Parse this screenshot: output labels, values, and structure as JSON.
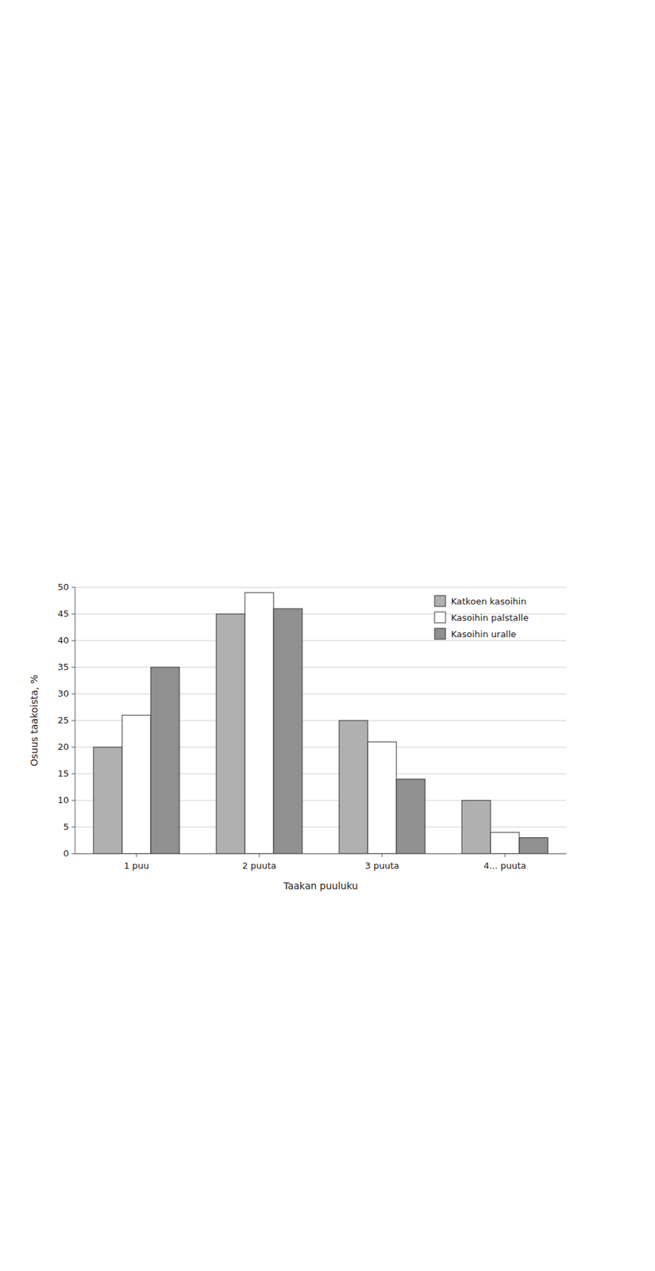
{
  "chart_data": {
    "type": "bar",
    "categories": [
      "1 puu",
      "2 puuta",
      "3 puuta",
      "4... puuta"
    ],
    "xlabel": "Taakan puuluku",
    "ylabel": "Osuus taakoista, %",
    "series": [
      {
        "name": "Katkoen kasoihin",
        "color": "#b0b0b0",
        "values": [
          20,
          45,
          25,
          10
        ]
      },
      {
        "name": "Kasoihin palstalle",
        "color": "#ffffff",
        "values": [
          26,
          49,
          21,
          4
        ]
      },
      {
        "name": "Kasoihin uralle",
        "color": "#909090",
        "values": [
          35,
          46,
          14,
          3
        ]
      }
    ],
    "ylim": [
      0,
      50
    ],
    "yticks": [
      0,
      5,
      10,
      15,
      20,
      25,
      30,
      35,
      40,
      45,
      50
    ],
    "grid": true,
    "legend": "upper right"
  }
}
